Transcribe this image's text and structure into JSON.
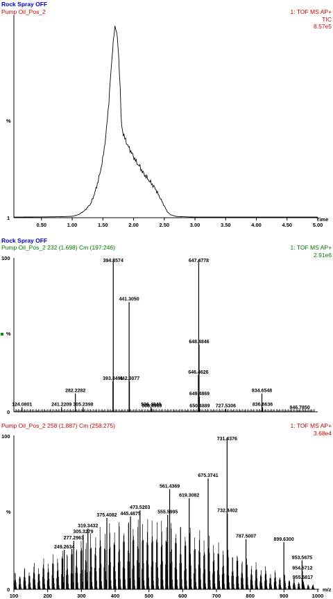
{
  "chart_data": [
    {
      "type": "line",
      "header_left": [
        "Rock Spray OFF",
        "Pump Oil_Pos_2"
      ],
      "header_right": [
        "1: TOF MS AP+",
        "TIC",
        "8.57e5"
      ],
      "ylabel": "%",
      "y_ticks": [
        "1"
      ],
      "xlabel": "Time",
      "x_ticks": [
        "0.50",
        "1.00",
        "1.50",
        "2.00",
        "2.50",
        "3.00",
        "3.50",
        "4.00",
        "4.50",
        "5.00"
      ],
      "xlim": [
        0.05,
        5.0
      ],
      "ylim": [
        0,
        100
      ],
      "colors": {
        "header_title": "#0000cc",
        "header_sub": "#cc0000",
        "trace": "#000000"
      },
      "series": [
        {
          "x": [
            0.05,
            0.5,
            0.8,
            1.0,
            1.1,
            1.2,
            1.3,
            1.35,
            1.4,
            1.45,
            1.5,
            1.55,
            1.6,
            1.63,
            1.66,
            1.68,
            1.7,
            1.72,
            1.74,
            1.76,
            1.78,
            1.8,
            1.83,
            1.86,
            1.9,
            1.95,
            2.0,
            2.05,
            2.1,
            2.15,
            2.2,
            2.25,
            2.3,
            2.35,
            2.4,
            2.45,
            2.5,
            2.55,
            2.6,
            2.7,
            3.0,
            4.0,
            5.0
          ],
          "y": [
            0.3,
            0.4,
            0.5,
            0.7,
            1.5,
            3.5,
            7,
            11,
            16,
            22,
            30,
            42,
            60,
            74,
            86,
            92,
            98,
            95,
            90,
            80,
            68,
            47,
            43,
            40,
            37,
            34,
            31,
            28,
            26,
            23,
            21,
            19,
            17,
            15,
            12,
            9,
            6,
            3,
            1.5,
            0.6,
            0.3,
            0.3,
            0.3
          ]
        }
      ]
    },
    {
      "type": "bar",
      "header_left": [
        "Rock Spray OFF",
        "Pump Oil_Pos_2 232 (1.698) Cm (197:246)"
      ],
      "header_right": [
        "1: TOF MS AP+",
        "2.91e6"
      ],
      "ylabel": "%",
      "y_ticks": [
        "100",
        "0"
      ],
      "xlim": [
        100,
        1000
      ],
      "ylim": [
        0,
        100
      ],
      "colors": {
        "header_title": "#0000cc",
        "header_sub": "#007700",
        "bars": "#000000",
        "marker": "#009900"
      },
      "peaks": [
        {
          "mz": 124.0801,
          "intensity": 3,
          "label": "124.0801"
        },
        {
          "mz": 241.2209,
          "intensity": 3,
          "label": "241.2209"
        },
        {
          "mz": 282.2282,
          "intensity": 12,
          "label": "282.2282"
        },
        {
          "mz": 305.2398,
          "intensity": 3,
          "label": "305.2398"
        },
        {
          "mz": 393.3491,
          "intensity": 20,
          "label": "393.3491"
        },
        {
          "mz": 394.3574,
          "intensity": 100,
          "label": "394.3574"
        },
        {
          "mz": 441.305,
          "intensity": 72,
          "label": "441.3050"
        },
        {
          "mz": 442.3077,
          "intensity": 20,
          "label": "442.3077"
        },
        {
          "mz": 506.4849,
          "intensity": 3,
          "label": "506.4849"
        },
        {
          "mz": 508.4969,
          "intensity": 2,
          "label": "508.4969"
        },
        {
          "mz": 646.4626,
          "intensity": 24,
          "label": "646.4626"
        },
        {
          "mz": 647.4778,
          "intensity": 100,
          "label": "647.4778"
        },
        {
          "mz": 648.4846,
          "intensity": 44,
          "label": "648.4846"
        },
        {
          "mz": 649.4869,
          "intensity": 10,
          "label": "649.4869"
        },
        {
          "mz": 650.4889,
          "intensity": 2,
          "label": "650.4889"
        },
        {
          "mz": 727.5306,
          "intensity": 2,
          "label": "727.5306"
        },
        {
          "mz": 834.6548,
          "intensity": 12,
          "label": "834.6548"
        },
        {
          "mz": 836.6636,
          "intensity": 3,
          "label": "836.6636"
        },
        {
          "mz": 946.785,
          "intensity": 1,
          "label": "946.7850"
        }
      ]
    },
    {
      "type": "bar",
      "header_left": [
        "Pump Oil_Pos_2 258 (1.887) Cm (258:275)"
      ],
      "header_right": [
        "1: TOF MS AP+",
        "3.68e4"
      ],
      "ylabel": "%",
      "y_ticks": [
        "100",
        "0"
      ],
      "xlabel": "m/z",
      "x_ticks": [
        "100",
        "200",
        "300",
        "400",
        "500",
        "600",
        "700",
        "800",
        "900",
        "1000"
      ],
      "xlim": [
        100,
        1000
      ],
      "ylim": [
        0,
        100
      ],
      "colors": {
        "header_sub": "#cc0000",
        "bars": "#000000"
      },
      "peaks": [
        {
          "mz": 249.2634,
          "intensity": 26,
          "label": "249.2634"
        },
        {
          "mz": 277.2963,
          "intensity": 32,
          "label": "277.2963"
        },
        {
          "mz": 305.3279,
          "intensity": 36,
          "label": "305.3279"
        },
        {
          "mz": 319.3432,
          "intensity": 40,
          "label": "319.3432"
        },
        {
          "mz": 375.4082,
          "intensity": 47,
          "label": "375.4082"
        },
        {
          "mz": 445.4875,
          "intensity": 48,
          "label": "445.4875"
        },
        {
          "mz": 473.5203,
          "intensity": 52,
          "label": "473.5203"
        },
        {
          "mz": 555.5995,
          "intensity": 49,
          "label": "555.5995"
        },
        {
          "mz": 561.4369,
          "intensity": 66,
          "label": "561.4369"
        },
        {
          "mz": 619.3082,
          "intensity": 60,
          "label": "619.3082"
        },
        {
          "mz": 675.3741,
          "intensity": 73,
          "label": "675.3741"
        },
        {
          "mz": 731.4376,
          "intensity": 100,
          "label": "731.4376"
        },
        {
          "mz": 732.4402,
          "intensity": 50,
          "label": "732.4402"
        },
        {
          "mz": 787.5007,
          "intensity": 33,
          "label": "787.5007"
        },
        {
          "mz": 899.63,
          "intensity": 31,
          "label": "899.6300"
        },
        {
          "mz": 953.5675,
          "intensity": 19,
          "label": "953.5675"
        },
        {
          "mz": 954.5712,
          "intensity": 12,
          "label": "954.5712"
        },
        {
          "mz": 955.5817,
          "intensity": 6,
          "label": "955.5817"
        }
      ],
      "envelope": {
        "mz": [
          100,
          150,
          200,
          250,
          300,
          350,
          400,
          450,
          500,
          550,
          600,
          650,
          700,
          750,
          800,
          850,
          900,
          950,
          1000
        ],
        "intensity": [
          10,
          15,
          20,
          26,
          32,
          38,
          42,
          44,
          45,
          43,
          40,
          36,
          30,
          24,
          18,
          13,
          9,
          5,
          2
        ]
      }
    }
  ]
}
